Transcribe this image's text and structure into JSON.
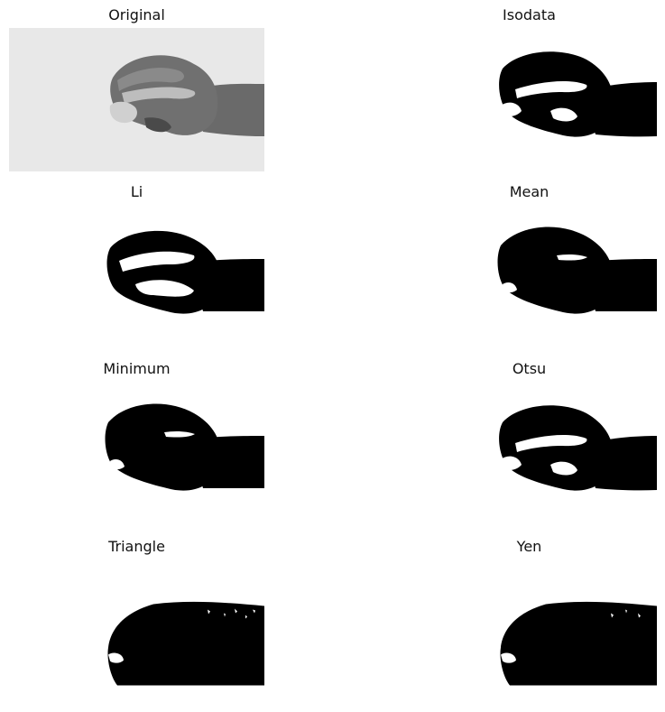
{
  "figure": {
    "panels": [
      {
        "id": "original",
        "title": "Original",
        "kind": "grayscale"
      },
      {
        "id": "isodata",
        "title": "Isodata",
        "kind": "binary"
      },
      {
        "id": "li",
        "title": "Li",
        "kind": "binary"
      },
      {
        "id": "mean",
        "title": "Mean",
        "kind": "binary"
      },
      {
        "id": "minimum",
        "title": "Minimum",
        "kind": "binary"
      },
      {
        "id": "otsu",
        "title": "Otsu",
        "kind": "binary"
      },
      {
        "id": "triangle",
        "title": "Triangle",
        "kind": "binary-noisy"
      },
      {
        "id": "yen",
        "title": "Yen",
        "kind": "binary-noisy"
      }
    ]
  },
  "colors": {
    "background": "#ffffff",
    "foreground": "#000000",
    "original_bg": "#e6e6e6"
  }
}
